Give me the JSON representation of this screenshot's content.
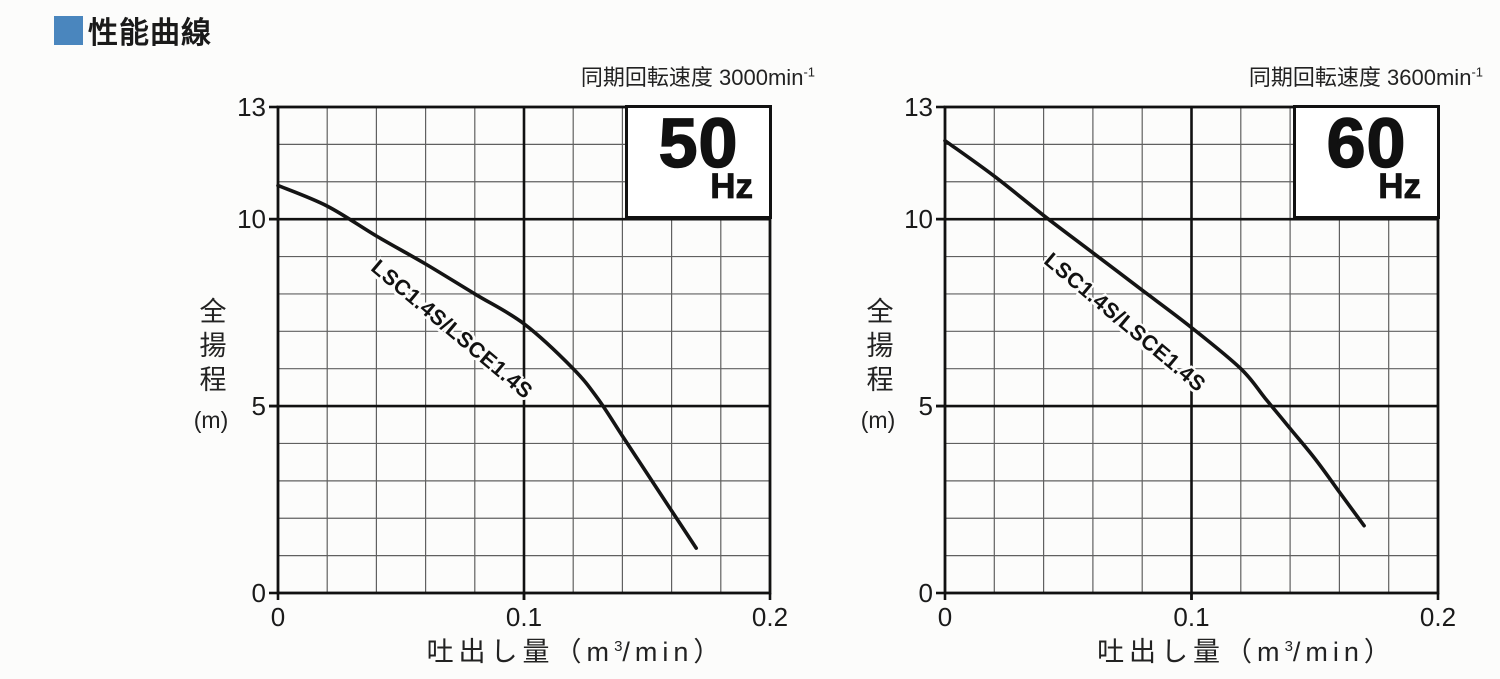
{
  "page": {
    "accent_color": "#4a86be",
    "background": "#fcfcfb"
  },
  "header": {
    "title": "性能曲線"
  },
  "charts": [
    {
      "id": "50hz",
      "subtitle_main": "同期回転速度 3000min",
      "subtitle_sup": "-1",
      "freq_value": "50",
      "freq_unit": "Hz",
      "curve_label": "LSC1.4S/LSCE1.4S",
      "ylabel_vertical": "全揚程",
      "ylabel_unit": "(m)",
      "xlabel_pre": "吐出し量（m",
      "xlabel_sup": "3",
      "xlabel_post": "/min）"
    },
    {
      "id": "60hz",
      "subtitle_main": "同期回転速度 3600min",
      "subtitle_sup": "-1",
      "freq_value": "60",
      "freq_unit": "Hz",
      "curve_label": "LSC1.4S/LSCE1.4S",
      "ylabel_vertical": "全揚程",
      "ylabel_unit": "(m)",
      "xlabel_pre": "吐出し量（m",
      "xlabel_sup": "3",
      "xlabel_post": "/min）"
    }
  ],
  "chart_data": [
    {
      "type": "line",
      "title": "同期回転速度 3000min⁻¹",
      "frequency_badge": "50 Hz",
      "xlabel": "吐出し量（m³/min）",
      "ylabel": "全揚程（m）",
      "xlim": [
        0,
        0.2
      ],
      "ylim": [
        0,
        13
      ],
      "x_gridstep": 0.02,
      "y_gridstep": 1,
      "x_major_gridlines": [
        0.1
      ],
      "y_major_gridlines": [
        5,
        10
      ],
      "x_ticks": [
        0,
        0.1,
        0.2
      ],
      "y_ticks": [
        0,
        5,
        10,
        13
      ],
      "grid": true,
      "legend_position": "on-curve",
      "series": [
        {
          "name": "LSC1.4S/LSCE1.4S",
          "x": [
            0,
            0.02,
            0.04,
            0.06,
            0.08,
            0.1,
            0.12,
            0.13,
            0.14,
            0.15,
            0.16,
            0.17
          ],
          "y": [
            10.9,
            10.35,
            9.55,
            8.8,
            8.0,
            7.2,
            6.0,
            5.2,
            4.2,
            3.2,
            2.2,
            1.2
          ]
        }
      ]
    },
    {
      "type": "line",
      "title": "同期回転速度 3600min⁻¹",
      "frequency_badge": "60 Hz",
      "xlabel": "吐出し量（m³/min）",
      "ylabel": "全揚程（m）",
      "xlim": [
        0,
        0.2
      ],
      "ylim": [
        0,
        13
      ],
      "x_gridstep": 0.02,
      "y_gridstep": 1,
      "x_major_gridlines": [
        0.1
      ],
      "y_major_gridlines": [
        5,
        10
      ],
      "x_ticks": [
        0,
        0.1,
        0.2
      ],
      "y_ticks": [
        0,
        5,
        10,
        13
      ],
      "grid": true,
      "legend_position": "on-curve",
      "series": [
        {
          "name": "LSC1.4S/LSCE1.4S",
          "x": [
            0,
            0.02,
            0.04,
            0.06,
            0.08,
            0.1,
            0.12,
            0.13,
            0.14,
            0.15,
            0.16,
            0.17
          ],
          "y": [
            12.1,
            11.15,
            10.1,
            9.1,
            8.1,
            7.1,
            6.0,
            5.2,
            4.4,
            3.6,
            2.7,
            1.8
          ]
        }
      ]
    }
  ]
}
